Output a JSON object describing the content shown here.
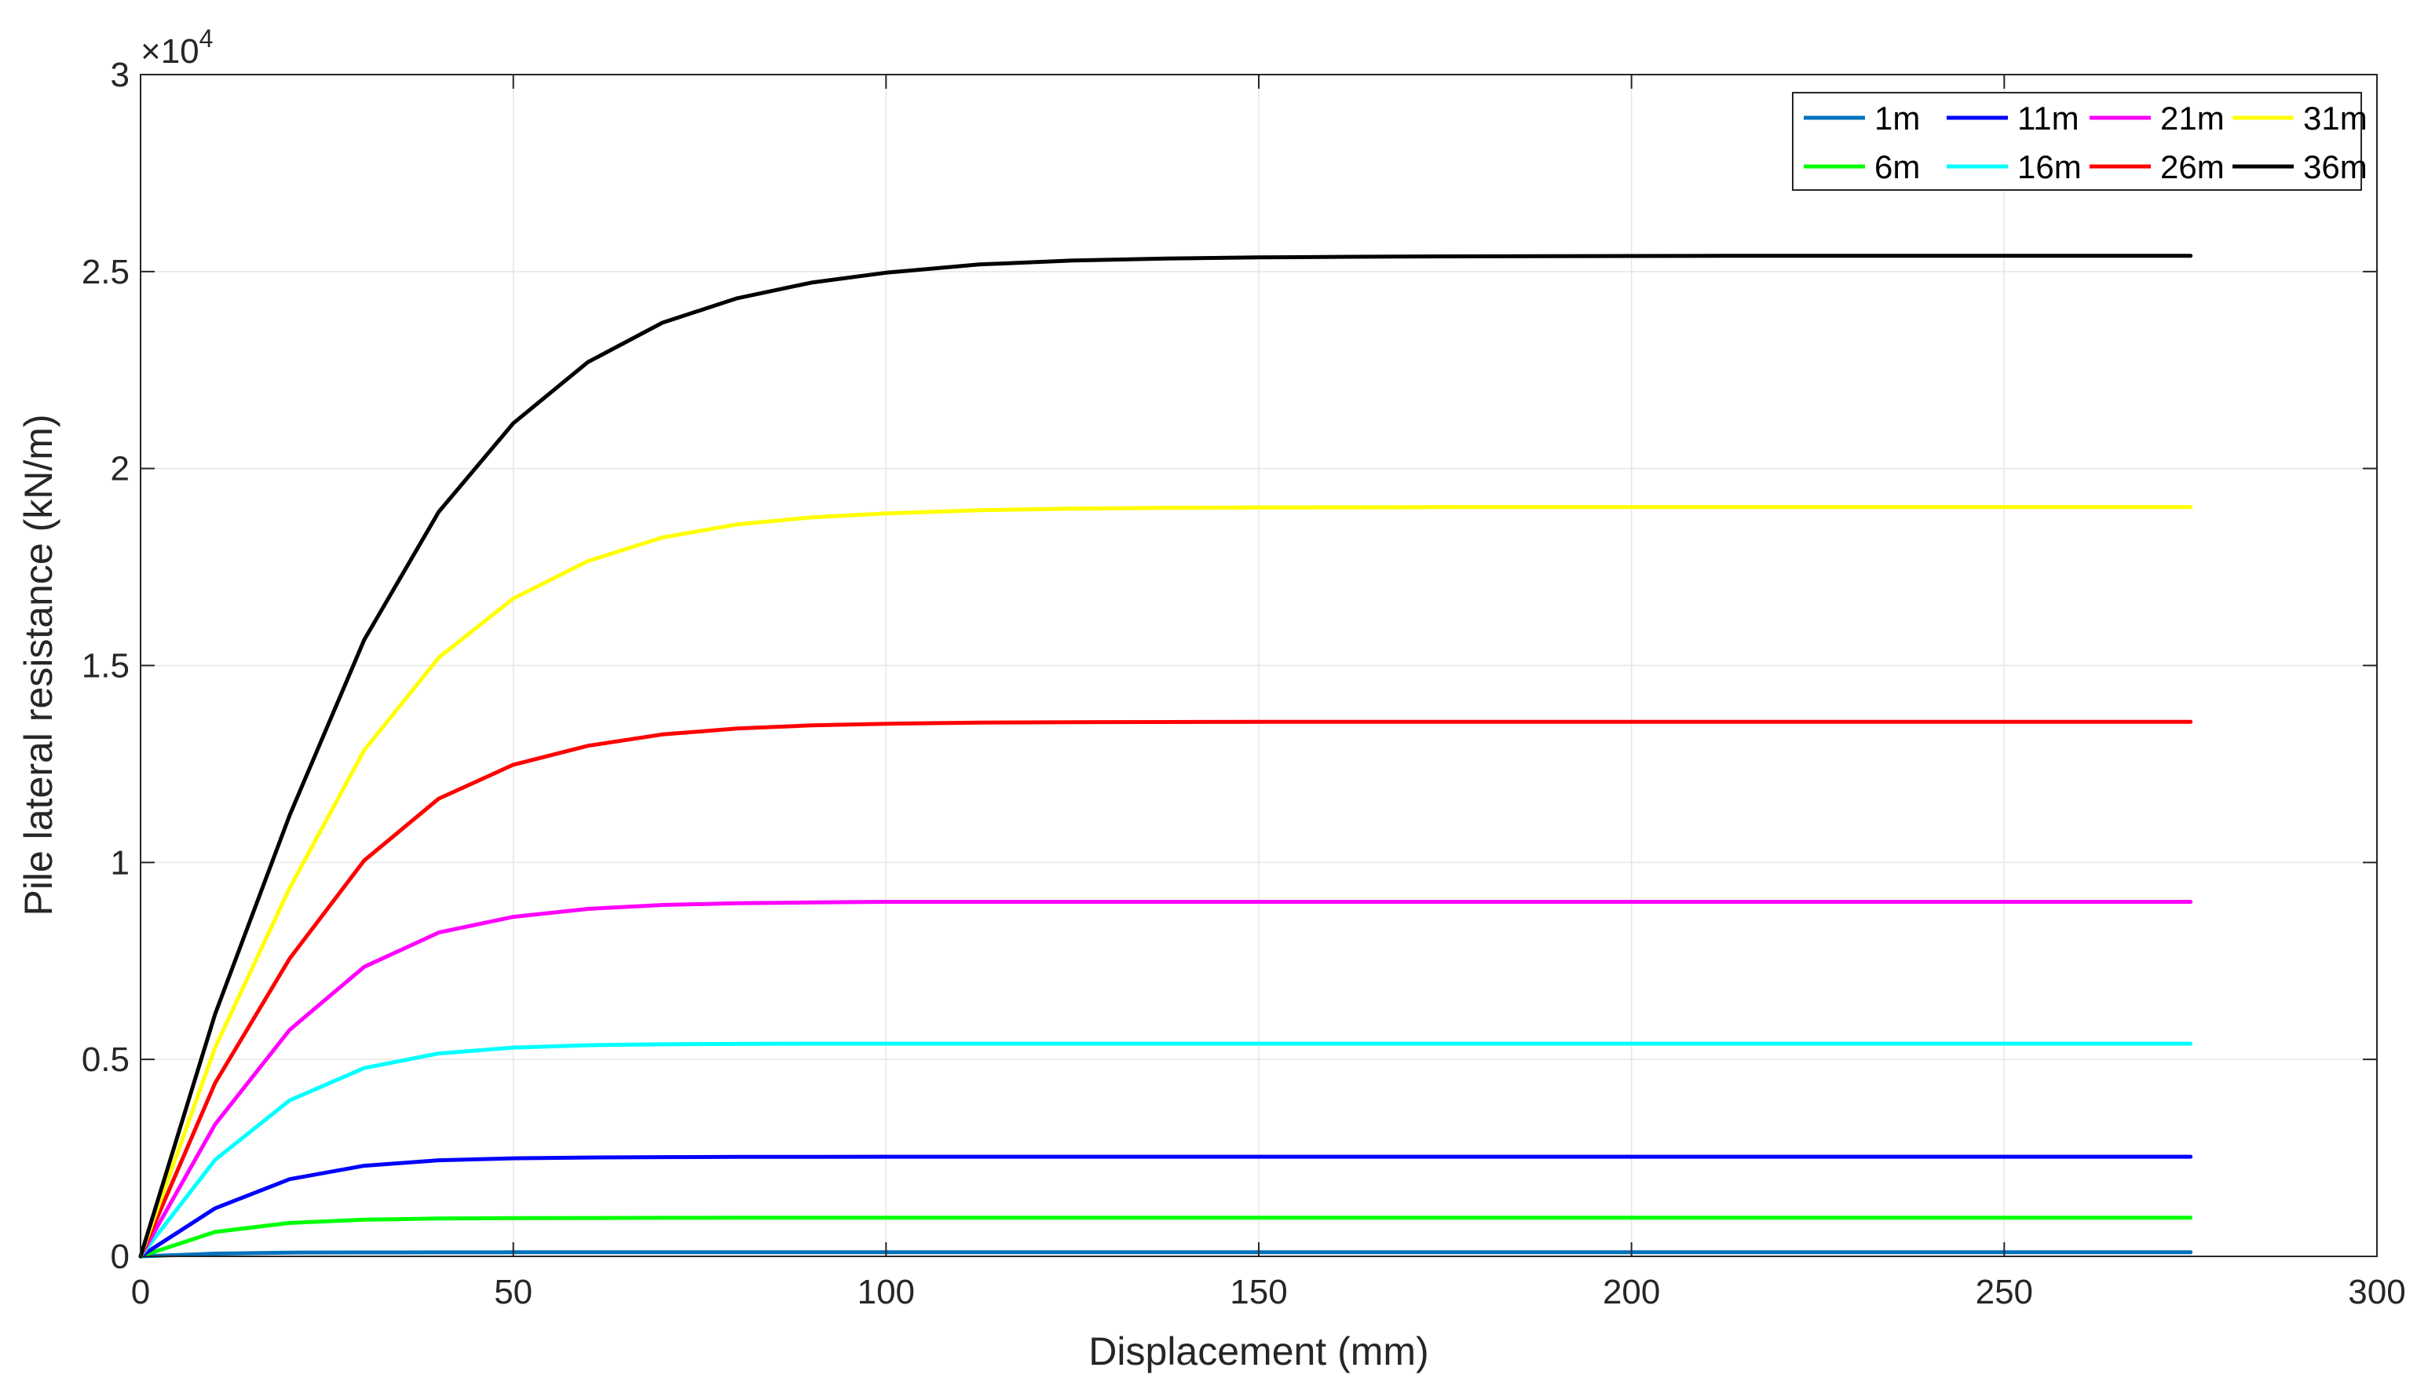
{
  "chart_data": {
    "type": "line",
    "xlabel": "Displacement (mm)",
    "ylabel": "Pile lateral resistance (kN/m)",
    "xlim": [
      0,
      300
    ],
    "ylim": [
      0,
      30000
    ],
    "x_ticks": [
      0,
      50,
      100,
      150,
      200,
      250,
      300
    ],
    "x_tick_labels": [
      "0",
      "50",
      "100",
      "150",
      "200",
      "250",
      "300"
    ],
    "y_ticks": [
      0,
      5000,
      10000,
      15000,
      20000,
      25000,
      30000
    ],
    "y_tick_labels": [
      "0",
      "0.5",
      "1",
      "1.5",
      "2",
      "2.5",
      "3"
    ],
    "y_multiplier": {
      "base": "×10",
      "exponent": "4"
    },
    "grid": true,
    "legend_placement": "top-right",
    "legend_columns": 4,
    "x": [
      0,
      10,
      20,
      30,
      40,
      50,
      60,
      70,
      80,
      90,
      100,
      112.5,
      125,
      137.5,
      150,
      162.5,
      175,
      187.5,
      200,
      212.5,
      225,
      237.5,
      250,
      262.5,
      275
    ],
    "series": [
      {
        "name": "1m",
        "color": "#0072BD",
        "values": [
          0,
          70,
          95,
          100,
          102,
          103,
          104,
          104,
          104,
          104,
          104,
          104,
          104,
          104,
          104,
          104,
          104,
          104,
          104,
          104,
          104,
          104,
          104,
          104,
          104
        ]
      },
      {
        "name": "6m",
        "color": "#00FF00",
        "values": [
          0,
          620,
          850,
          930,
          960,
          970,
          975,
          978,
          980,
          980,
          980,
          980,
          980,
          980,
          980,
          980,
          980,
          980,
          980,
          980,
          980,
          980,
          980,
          980,
          980
        ]
      },
      {
        "name": "11m",
        "color": "#0000FF",
        "values": [
          0,
          1220,
          1960,
          2300,
          2440,
          2490,
          2510,
          2520,
          2525,
          2528,
          2530,
          2530,
          2530,
          2530,
          2530,
          2530,
          2530,
          2530,
          2530,
          2530,
          2530,
          2530,
          2530,
          2530,
          2530
        ]
      },
      {
        "name": "16m",
        "color": "#00FFFF",
        "values": [
          0,
          2450,
          3960,
          4780,
          5150,
          5300,
          5360,
          5385,
          5395,
          5400,
          5400,
          5400,
          5400,
          5400,
          5400,
          5400,
          5400,
          5400,
          5400,
          5400,
          5400,
          5400,
          5400,
          5400,
          5400
        ]
      },
      {
        "name": "21m",
        "color": "#FF00FF",
        "values": [
          0,
          3350,
          5750,
          7350,
          8220,
          8620,
          8820,
          8920,
          8965,
          8985,
          9000,
          9000,
          9000,
          9000,
          9000,
          9000,
          9000,
          9000,
          9000,
          9000,
          9000,
          9000,
          9000,
          9000,
          9000
        ]
      },
      {
        "name": "26m",
        "color": "#FF0000",
        "values": [
          0,
          4400,
          7560,
          10050,
          11620,
          12480,
          12960,
          13250,
          13400,
          13480,
          13520,
          13550,
          13560,
          13565,
          13570,
          13570,
          13570,
          13570,
          13570,
          13570,
          13570,
          13570,
          13570,
          13570,
          13570
        ]
      },
      {
        "name": "31m",
        "color": "#FFFF00",
        "values": [
          0,
          5300,
          9350,
          12850,
          15200,
          16700,
          17650,
          18250,
          18580,
          18760,
          18860,
          18940,
          18980,
          19000,
          19010,
          19015,
          19020,
          19020,
          19020,
          19020,
          19020,
          19020,
          19020,
          19020,
          19020
        ]
      },
      {
        "name": "36m",
        "color": "#000000",
        "values": [
          0,
          6150,
          11200,
          15650,
          18900,
          21150,
          22700,
          23700,
          24320,
          24720,
          24970,
          25180,
          25280,
          25330,
          25360,
          25375,
          25385,
          25390,
          25395,
          25400,
          25400,
          25400,
          25400,
          25400,
          25400
        ]
      }
    ],
    "legend_order": [
      "1m",
      "11m",
      "21m",
      "31m",
      "6m",
      "16m",
      "26m",
      "36m"
    ]
  }
}
